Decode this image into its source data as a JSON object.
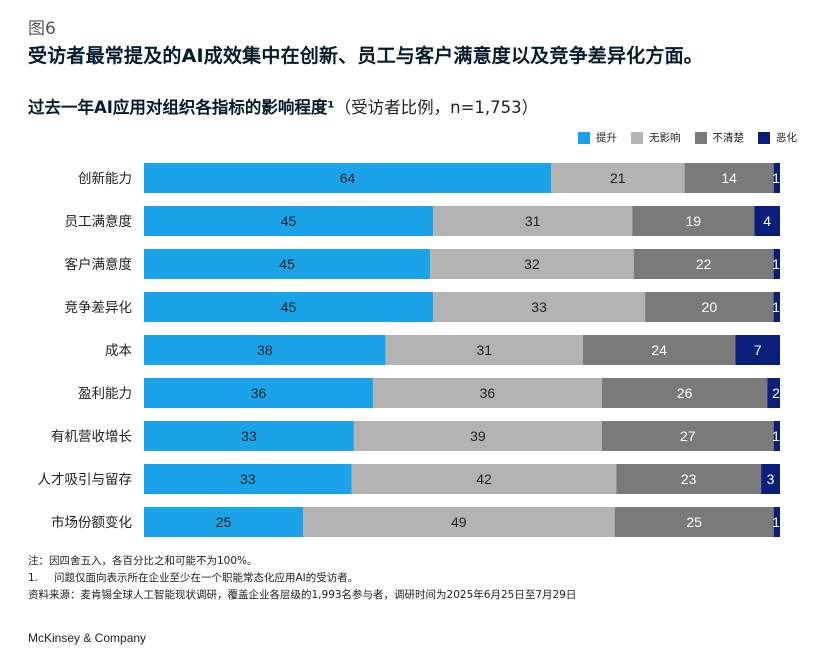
{
  "figure_label": "图6",
  "headline": "受访者最常提及的AI成效集中在创新、员工与客户满意度以及竞争差异化方面。",
  "chart_title": {
    "main": "过去一年AI应用对组织各指标的影响程度¹",
    "sub": "（受访者比例，n=1,753）"
  },
  "chart_data": {
    "type": "bar",
    "orientation": "horizontal",
    "stacked": true,
    "categories": [
      "创新能力",
      "员工满意度",
      "客户满意度",
      "竞争差异化",
      "成本",
      "盈利能力",
      "有机营收增长",
      "人才吸引与留存",
      "市场份额变化"
    ],
    "series": [
      {
        "name": "提升",
        "color": "#1aa3e8",
        "label_color": "#222222",
        "values": [
          64,
          45,
          45,
          45,
          38,
          36,
          33,
          33,
          25
        ]
      },
      {
        "name": "无影响",
        "color": "#b3b3b3",
        "label_color": "#222222",
        "values": [
          21,
          31,
          32,
          33,
          31,
          36,
          39,
          42,
          49
        ]
      },
      {
        "name": "不清楚",
        "color": "#7a7a7a",
        "label_color": "#ffffff",
        "values": [
          14,
          19,
          22,
          20,
          24,
          26,
          27,
          23,
          25
        ]
      },
      {
        "name": "恶化",
        "color": "#0b1f7a",
        "label_color": "#ffffff",
        "values": [
          1,
          4,
          1,
          1,
          7,
          2,
          1,
          3,
          1
        ]
      }
    ],
    "legend_position": "top-right",
    "grid": false
  },
  "notes": {
    "note": "注：因四舍五入，各百分比之和可能不为100%。",
    "footnote_num": "1.",
    "footnote": "问题仅面向表示所在企业至少在一个职能常态化应用AI的受访者。",
    "source": "资料来源：麦肯锡全球人工智能现状调研，覆盖企业各层级的1,993名参与者，调研时间为2025年6月25日至7月29日"
  },
  "brand": "McKinsey & Company"
}
